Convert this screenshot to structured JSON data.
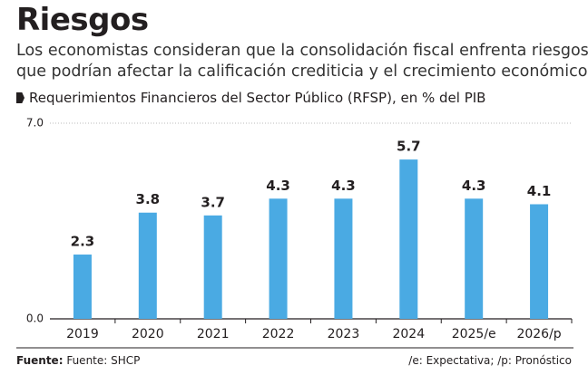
{
  "chart_data": {
    "type": "bar",
    "title": "Riesgos",
    "subtitle": [
      "Los economistas consideran que la consolidación fiscal enfrenta riesgos",
      "que podrían afectar la calificación crediticia y el crecimiento económico."
    ],
    "chart_title": "Requerimientos Financieros del Sector Público (RFSP), en % del PIB",
    "categories": [
      "2019",
      "2020",
      "2021",
      "2022",
      "2023",
      "2024",
      "2025/e",
      "2026/p"
    ],
    "values": [
      2.3,
      3.8,
      3.7,
      4.3,
      4.3,
      5.7,
      4.3,
      4.1
    ],
    "color": "#4aaae3",
    "ylim": [
      0,
      7
    ],
    "yticks": [
      {
        "value": 0,
        "label": "0.0"
      },
      {
        "value": 7,
        "label": "7.0"
      }
    ],
    "grid": true,
    "source_label": "Fuente:",
    "source": "Fuente: SHCP",
    "note": "/e: Expectativa; /p: Pronóstico"
  }
}
